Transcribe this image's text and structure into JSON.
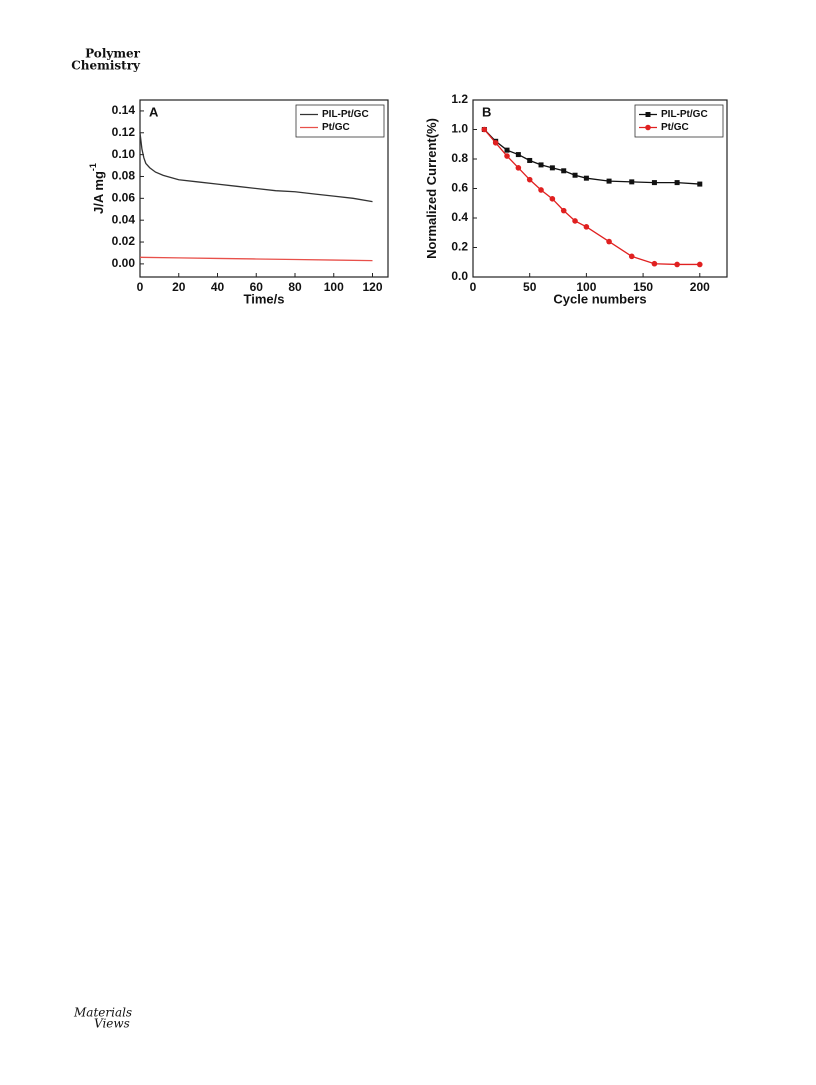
{
  "header": {
    "journal_line1": "Polymer",
    "journal_line2": "Chemistry"
  },
  "footer": {
    "logo_line1": "Materials",
    "logo_line2": "Views"
  },
  "chart_data": [
    {
      "type": "line",
      "label": "A",
      "xlabel": "Time/s",
      "ylabel": {
        "text": "J/A mg",
        "sup": "-1"
      },
      "xlim": [
        0,
        128
      ],
      "xticks": [
        0,
        20,
        40,
        60,
        80,
        100,
        120
      ],
      "ylim": [
        -0.012,
        0.15
      ],
      "yticks": [
        {
          "value": 0,
          "label": "0.00"
        },
        {
          "value": 0.02,
          "label": "0.02"
        },
        {
          "value": 0.04,
          "label": "0.04"
        },
        {
          "value": 0.06,
          "label": "0.06"
        },
        {
          "value": 0.08,
          "label": "0.08"
        },
        {
          "value": 0.1,
          "label": "0.10"
        },
        {
          "value": 0.12,
          "label": "0.12"
        },
        {
          "value": 0.14,
          "label": "0.14"
        }
      ],
      "legend": "upper right",
      "series": [
        {
          "name": "PIL-Pt/GC",
          "color": "#333333",
          "x": [
            0,
            1,
            2,
            3,
            5,
            8,
            12,
            20,
            30,
            40,
            50,
            60,
            70,
            80,
            90,
            100,
            110,
            120
          ],
          "values": [
            0.12,
            0.105,
            0.097,
            0.092,
            0.088,
            0.084,
            0.081,
            0.077,
            0.075,
            0.073,
            0.071,
            0.069,
            0.067,
            0.066,
            0.064,
            0.062,
            0.06,
            0.057
          ]
        },
        {
          "name": "Pt/GC",
          "color": "#e8504a",
          "x": [
            0,
            20,
            40,
            60,
            80,
            100,
            120
          ],
          "values": [
            0.006,
            0.0055,
            0.005,
            0.0045,
            0.004,
            0.0035,
            0.003
          ]
        }
      ]
    },
    {
      "type": "line",
      "label": "B",
      "xlabel": "Cycle numbers",
      "ylabel": {
        "text": "Normalized Current(%)"
      },
      "xlim": [
        0,
        224
      ],
      "xticks": [
        0,
        50,
        100,
        150,
        200
      ],
      "ylim": [
        0,
        1.2
      ],
      "yticks": [
        {
          "value": 0,
          "label": "0.0"
        },
        {
          "value": 0.2,
          "label": "0.2"
        },
        {
          "value": 0.4,
          "label": "0.4"
        },
        {
          "value": 0.6,
          "label": "0.6"
        },
        {
          "value": 0.8,
          "label": "0.8"
        },
        {
          "value": 1,
          "label": "1.0"
        },
        {
          "value": 1.2,
          "label": "1.2"
        }
      ],
      "legend": "upper right",
      "series": [
        {
          "name": "PIL-Pt/GC",
          "color": "#111111",
          "marker": "square",
          "x": [
            10,
            20,
            30,
            40,
            50,
            60,
            70,
            80,
            90,
            100,
            120,
            140,
            160,
            180,
            200
          ],
          "values": [
            1.0,
            0.92,
            0.86,
            0.83,
            0.79,
            0.76,
            0.74,
            0.72,
            0.69,
            0.67,
            0.65,
            0.645,
            0.64,
            0.64,
            0.63
          ]
        },
        {
          "name": "Pt/GC",
          "color": "#e02020",
          "marker": "circle",
          "x": [
            10,
            20,
            30,
            40,
            50,
            60,
            70,
            80,
            90,
            100,
            120,
            140,
            160,
            180,
            200
          ],
          "values": [
            1.0,
            0.91,
            0.82,
            0.74,
            0.66,
            0.59,
            0.53,
            0.45,
            0.38,
            0.34,
            0.24,
            0.14,
            0.09,
            0.085,
            0.085
          ]
        }
      ]
    }
  ]
}
